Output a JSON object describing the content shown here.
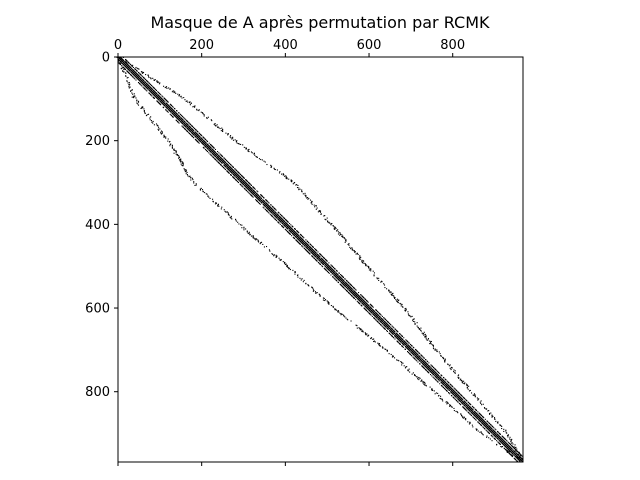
{
  "chart_data": {
    "type": "spy",
    "title": "Masque de A après permutation par RCMK",
    "matrix_size": 968,
    "xlim": [
      0,
      968
    ],
    "ylim": [
      968,
      0
    ],
    "x_ticks": [
      0,
      200,
      400,
      600,
      800
    ],
    "y_ticks": [
      0,
      200,
      400,
      600,
      800
    ],
    "x_tick_labels": [
      "0",
      "200",
      "400",
      "600",
      "800"
    ],
    "y_tick_labels": [
      "0",
      "200",
      "400",
      "600",
      "800"
    ],
    "x_ticks_at_top": true,
    "extra_bottom_ticks": [
      0,
      200,
      400,
      600,
      800
    ],
    "grid": false,
    "marker_color": "#000000",
    "diagonals": [
      {
        "offset": 0,
        "density": 1.0
      },
      {
        "offset": 5,
        "density": 0.9
      },
      {
        "offset": -5,
        "density": 0.9
      },
      {
        "offset": 12,
        "density": 0.6
      },
      {
        "offset": -12,
        "density": 0.6
      }
    ],
    "outer_band_profile": [
      {
        "row": 0,
        "offset": 0
      },
      {
        "row": 100,
        "offset": 60
      },
      {
        "row": 200,
        "offset": 80
      },
      {
        "row": 300,
        "offset": 120
      },
      {
        "row": 400,
        "offset": 110
      },
      {
        "row": 500,
        "offset": 95
      },
      {
        "row": 600,
        "offset": 85
      },
      {
        "row": 700,
        "offset": 60
      },
      {
        "row": 800,
        "offset": 45
      },
      {
        "row": 900,
        "offset": 30
      },
      {
        "row": 968,
        "offset": 0
      }
    ]
  }
}
